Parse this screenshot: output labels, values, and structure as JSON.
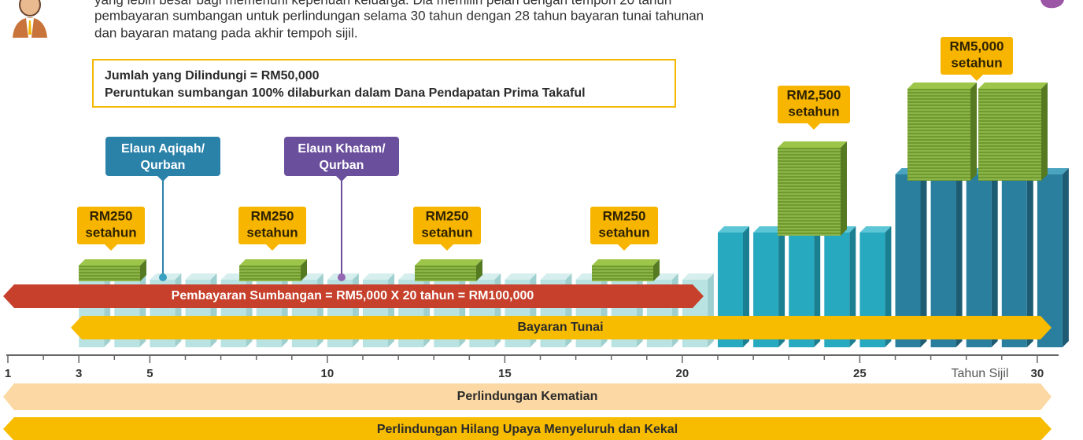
{
  "intro": {
    "lines": [
      "yang lebih besar bagi memenuhi keperluan keluarga. Dia memilih pelan dengan tempoh 20 tahun",
      "pembayaran sumbangan untuk perlindungan selama 30 tahun dengan 28 tahun bayaran tunai tahunan",
      "dan bayaran matang pada akhir tempoh sijil."
    ]
  },
  "info_box": {
    "lines": [
      "Jumlah yang Dilindungi = RM50,000",
      "Peruntukan sumbangan 100% dilaburkan dalam Dana Pendapatan Prima Takaful"
    ]
  },
  "callouts": [
    {
      "lines": [
        "Elaun Aqiqah/",
        "Qurban"
      ]
    },
    {
      "lines": [
        "Elaun Khatam/",
        "Qurban"
      ]
    }
  ],
  "payouts": [
    {
      "amount": "RM250",
      "period": "setahun"
    },
    {
      "amount": "RM250",
      "period": "setahun"
    },
    {
      "amount": "RM250",
      "period": "setahun"
    },
    {
      "amount": "RM250",
      "period": "setahun"
    },
    {
      "amount": "RM2,500",
      "period": "setahun"
    },
    {
      "amount": "RM5,000",
      "period": "setahun"
    }
  ],
  "arrows": [
    "Pembayaran Sumbangan = RM5,000 X 20 tahun = RM100,000",
    "Bayaran Tunai",
    "Perlindungan Kematian",
    "Perlindungan Hilang Upaya Menyeluruh dan Kekal"
  ],
  "axis": {
    "ticks": [
      "1",
      "3",
      "5",
      "10",
      "15",
      "20",
      "25",
      "30"
    ],
    "unit": "Tahun Sijil"
  }
}
